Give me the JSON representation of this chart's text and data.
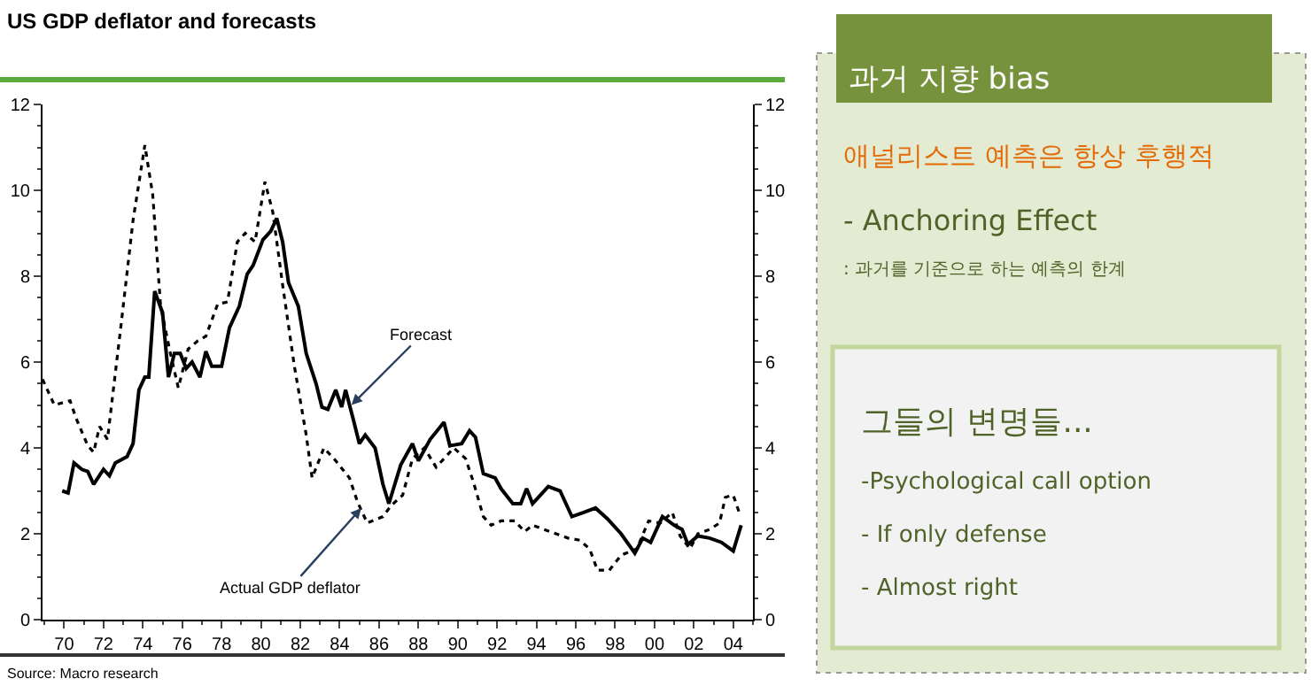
{
  "chart_data": [
    {
      "type": "line",
      "title": "US GDP deflator and forecasts",
      "series": [
        {
          "color": "#000000",
          "line_style": "solid",
          "x": [
            1969.9,
            1970.2,
            1970.5,
            1970.9,
            1971.2,
            1971.5,
            1972.0,
            1972.3,
            1972.6,
            1973.2,
            1973.5,
            1973.8,
            1974.1,
            1974.3,
            1974.6,
            1975.0,
            1975.3,
            1975.6,
            1975.9,
            1976.2,
            1976.5,
            1976.9,
            1977.2,
            1977.5,
            1978.0,
            1978.4,
            1978.9,
            1979.3,
            1979.6,
            1980.1,
            1980.5,
            1980.8,
            1981.1,
            1981.4,
            1981.9,
            1982.3,
            1982.8,
            1983.1,
            1983.4,
            1983.8,
            1984.1,
            1984.3,
            1984.7,
            1985.0,
            1985.3,
            1985.8,
            1986.2,
            1986.5,
            1987.1,
            1987.7,
            1988.0,
            1988.6,
            1989.3,
            1989.6,
            1990.2,
            1990.6,
            1990.9,
            1991.3,
            1991.9,
            1992.2,
            1992.8,
            1993.2,
            1993.5,
            1993.8,
            1994.6,
            1995.2,
            1995.8,
            1996.4,
            1997.0,
            1997.6,
            1998.3,
            1999.0,
            1999.4,
            1999.8,
            2000.4,
            2001.0,
            2001.4,
            2001.7,
            2002.2,
            2002.8,
            2003.4,
            2004.0,
            2004.4
          ],
          "values": [
            3.0,
            2.95,
            3.65,
            3.5,
            3.45,
            3.15,
            3.5,
            3.35,
            3.65,
            3.8,
            4.1,
            5.35,
            5.65,
            5.65,
            7.65,
            7.15,
            5.65,
            6.2,
            6.2,
            5.85,
            6.0,
            5.65,
            6.25,
            5.9,
            5.9,
            6.8,
            7.3,
            8.05,
            8.25,
            8.85,
            9.05,
            9.35,
            8.8,
            7.85,
            7.3,
            6.2,
            5.5,
            4.95,
            4.9,
            5.35,
            4.95,
            5.35,
            4.65,
            4.1,
            4.3,
            4.0,
            3.15,
            2.7,
            3.6,
            4.1,
            3.7,
            4.2,
            4.6,
            4.05,
            4.1,
            4.4,
            4.25,
            3.4,
            3.3,
            3.05,
            2.7,
            2.7,
            3.05,
            2.7,
            3.1,
            3.0,
            2.4,
            2.5,
            2.6,
            2.35,
            2.0,
            1.55,
            1.9,
            1.8,
            2.4,
            2.2,
            2.1,
            1.75,
            1.95,
            1.9,
            1.8,
            1.6,
            2.2
          ]
        },
        {
          "color": "#000000",
          "line_style": "dotted",
          "x": [
            1968.9,
            1969.5,
            1970.3,
            1970.6,
            1971.2,
            1971.5,
            1971.8,
            1972.2,
            1972.9,
            1973.5,
            1974.1,
            1974.5,
            1974.9,
            1975.4,
            1975.8,
            1976.3,
            1976.8,
            1977.2,
            1977.8,
            1978.3,
            1978.8,
            1979.2,
            1979.7,
            1980.2,
            1980.6,
            1981.1,
            1981.7,
            1982.3,
            1982.6,
            1983.2,
            1983.8,
            1984.5,
            1984.9,
            1985.4,
            1986.2,
            1986.6,
            1987.2,
            1987.7,
            1988.3,
            1988.9,
            1989.3,
            1989.8,
            1990.4,
            1990.8,
            1991.3,
            1991.7,
            1992.2,
            1992.9,
            1993.4,
            1993.8,
            1994.4,
            1995.0,
            1995.6,
            1996.2,
            1996.7,
            1997.1,
            1997.7,
            1998.3,
            1999.1,
            1999.7,
            2000.3,
            2000.9,
            2001.3,
            2001.8,
            2002.2,
            2002.8,
            2003.3,
            2003.6,
            2004.0,
            2004.3
          ],
          "values": [
            5.6,
            5.0,
            5.1,
            4.7,
            4.05,
            3.9,
            4.5,
            4.2,
            6.9,
            9.3,
            11.05,
            9.9,
            7.3,
            6.2,
            5.4,
            6.3,
            6.5,
            6.6,
            7.35,
            7.4,
            8.8,
            9.0,
            8.8,
            10.2,
            9.5,
            7.8,
            5.9,
            4.3,
            3.3,
            4.0,
            3.7,
            3.3,
            2.75,
            2.25,
            2.4,
            2.65,
            2.9,
            3.75,
            4.0,
            3.55,
            3.75,
            4.0,
            3.75,
            3.2,
            2.4,
            2.2,
            2.3,
            2.3,
            2.05,
            2.2,
            2.1,
            2.0,
            1.9,
            1.85,
            1.65,
            1.15,
            1.15,
            1.5,
            1.65,
            2.3,
            2.25,
            2.5,
            1.95,
            1.65,
            2.0,
            2.1,
            2.25,
            2.85,
            2.9,
            2.5
          ]
        }
      ],
      "xlim": [
        1968.9,
        2005.0
      ],
      "xticks": [
        {
          "value": 1970,
          "label": "70"
        },
        {
          "value": 1972,
          "label": "72"
        },
        {
          "value": 1974,
          "label": "74"
        },
        {
          "value": 1976,
          "label": "76"
        },
        {
          "value": 1978,
          "label": "78"
        },
        {
          "value": 1980,
          "label": "80"
        },
        {
          "value": 1982,
          "label": "82"
        },
        {
          "value": 1984,
          "label": "84"
        },
        {
          "value": 1986,
          "label": "86"
        },
        {
          "value": 1988,
          "label": "88"
        },
        {
          "value": 1990,
          "label": "90"
        },
        {
          "value": 1992,
          "label": "92"
        },
        {
          "value": 1994,
          "label": "94"
        },
        {
          "value": 1996,
          "label": "96"
        },
        {
          "value": 1998,
          "label": "98"
        },
        {
          "value": 2000,
          "label": "00"
        },
        {
          "value": 2002,
          "label": "02"
        },
        {
          "value": 2004,
          "label": "04"
        }
      ],
      "ylim": [
        0,
        12
      ],
      "yticks": [
        0,
        2,
        4,
        6,
        8,
        10,
        12
      ],
      "y2lim": [
        0,
        12
      ],
      "y2ticks": [
        0,
        2,
        4,
        6,
        8,
        10,
        12
      ],
      "annotations": [
        {
          "text": "Forecast",
          "x": 1984.6,
          "y": 5.0
        },
        {
          "text": "Actual GDP deflator",
          "x": 1985.1,
          "y": 2.6
        },
        "Source: Macro research"
      ]
    },
    {
      "type": "other",
      "title": "과거 지향 bias",
      "annotations": [
        "애널리스트 예측은 항상 후행적",
        "- Anchoring Effect",
        ": 과거를 기준으로 하는 예측의 한계",
        "그들의 변명들...",
        "-Psychological call option",
        "- If only defense",
        "- Almost right"
      ]
    }
  ]
}
